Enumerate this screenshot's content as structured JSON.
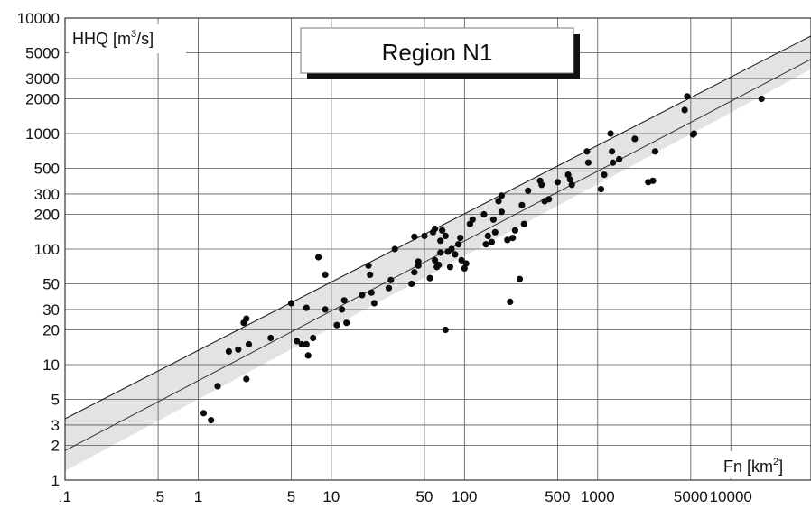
{
  "chart_data": {
    "type": "scatter",
    "title": "Region N1",
    "y_label": {
      "text": "HHQ [m",
      "sup": "3",
      "tail": "/s]"
    },
    "x_label": {
      "text": "Fn [km",
      "sup": "2",
      "tail": "]"
    },
    "x_scale": "log",
    "y_scale": "log",
    "xlim": [
      0.1,
      40000
    ],
    "ylim": [
      1,
      10000
    ],
    "x_ticks": [
      {
        "value": 0.1,
        "label": ".1"
      },
      {
        "value": 0.5,
        "label": ".5"
      },
      {
        "value": 1,
        "label": "1"
      },
      {
        "value": 5,
        "label": "5"
      },
      {
        "value": 10,
        "label": "10"
      },
      {
        "value": 50,
        "label": "50"
      },
      {
        "value": 100,
        "label": "100"
      },
      {
        "value": 500,
        "label": "500"
      },
      {
        "value": 1000,
        "label": "1000"
      },
      {
        "value": 5000,
        "label": "5000"
      },
      {
        "value": 10000,
        "label": "10000"
      }
    ],
    "y_ticks": [
      {
        "value": 1,
        "label": "1"
      },
      {
        "value": 2,
        "label": "2"
      },
      {
        "value": 3,
        "label": "3"
      },
      {
        "value": 5,
        "label": "5"
      },
      {
        "value": 10,
        "label": "10"
      },
      {
        "value": 20,
        "label": "20"
      },
      {
        "value": 30,
        "label": "30"
      },
      {
        "value": 50,
        "label": "50"
      },
      {
        "value": 100,
        "label": "100"
      },
      {
        "value": 200,
        "label": "200"
      },
      {
        "value": 300,
        "label": "300"
      },
      {
        "value": 500,
        "label": "500"
      },
      {
        "value": 1000,
        "label": "1000"
      },
      {
        "value": 2000,
        "label": "2000"
      },
      {
        "value": 3000,
        "label": "3000"
      },
      {
        "value": 5000,
        "label": "5000"
      },
      {
        "value": 10000,
        "label": "10000"
      }
    ],
    "grid": true,
    "upper_line": {
      "x": [
        0.1,
        40000
      ],
      "y": [
        3.4,
        7000
      ]
    },
    "mid_line": {
      "x": [
        0.1,
        40000
      ],
      "y": [
        1.8,
        4400
      ]
    },
    "band": {
      "upper": [
        [
          0.1,
          3.4
        ],
        [
          40000,
          7000
        ]
      ],
      "lower": [
        [
          0.1,
          1.2
        ],
        [
          40000,
          3600
        ]
      ]
    },
    "points": [
      [
        1.1,
        3.8
      ],
      [
        1.25,
        3.3
      ],
      [
        1.4,
        6.5
      ],
      [
        1.7,
        13
      ],
      [
        2.0,
        13.5
      ],
      [
        2.2,
        23
      ],
      [
        2.3,
        25
      ],
      [
        2.3,
        7.5
      ],
      [
        2.4,
        15
      ],
      [
        3.5,
        17
      ],
      [
        5,
        34
      ],
      [
        5.5,
        16
      ],
      [
        6.0,
        15
      ],
      [
        6.5,
        31
      ],
      [
        6.5,
        15
      ],
      [
        6.7,
        12
      ],
      [
        7.3,
        17
      ],
      [
        8,
        85
      ],
      [
        9,
        60
      ],
      [
        9,
        30
      ],
      [
        11,
        22
      ],
      [
        12,
        30
      ],
      [
        12.5,
        36
      ],
      [
        13,
        23
      ],
      [
        17,
        40
      ],
      [
        19,
        72
      ],
      [
        19.5,
        60
      ],
      [
        20,
        42
      ],
      [
        21,
        34
      ],
      [
        27,
        46
      ],
      [
        28,
        54
      ],
      [
        30,
        100
      ],
      [
        40,
        50
      ],
      [
        42,
        63
      ],
      [
        42,
        128
      ],
      [
        45,
        72
      ],
      [
        45,
        78
      ],
      [
        50,
        130
      ],
      [
        55,
        56
      ],
      [
        58,
        140
      ],
      [
        60,
        80
      ],
      [
        60,
        150
      ],
      [
        62,
        70
      ],
      [
        64,
        73
      ],
      [
        66,
        93
      ],
      [
        66,
        118
      ],
      [
        68,
        145
      ],
      [
        72,
        20
      ],
      [
        72,
        130
      ],
      [
        75,
        95
      ],
      [
        78,
        70
      ],
      [
        80,
        100
      ],
      [
        85,
        90
      ],
      [
        90,
        110
      ],
      [
        93,
        125
      ],
      [
        95,
        80
      ],
      [
        100,
        68
      ],
      [
        103,
        75
      ],
      [
        110,
        165
      ],
      [
        115,
        180
      ],
      [
        140,
        200
      ],
      [
        145,
        110
      ],
      [
        150,
        130
      ],
      [
        160,
        115
      ],
      [
        165,
        180
      ],
      [
        170,
        140
      ],
      [
        180,
        260
      ],
      [
        190,
        290
      ],
      [
        190,
        210
      ],
      [
        210,
        120
      ],
      [
        220,
        35
      ],
      [
        230,
        125
      ],
      [
        240,
        145
      ],
      [
        260,
        55
      ],
      [
        270,
        240
      ],
      [
        280,
        165
      ],
      [
        300,
        320
      ],
      [
        370,
        390
      ],
      [
        380,
        360
      ],
      [
        400,
        260
      ],
      [
        430,
        270
      ],
      [
        500,
        380
      ],
      [
        600,
        440
      ],
      [
        620,
        400
      ],
      [
        640,
        360
      ],
      [
        830,
        700
      ],
      [
        850,
        560
      ],
      [
        1060,
        330
      ],
      [
        1120,
        440
      ],
      [
        1250,
        1000
      ],
      [
        1280,
        700
      ],
      [
        1300,
        560
      ],
      [
        1450,
        600
      ],
      [
        1900,
        900
      ],
      [
        2400,
        380
      ],
      [
        2600,
        390
      ],
      [
        2700,
        700
      ],
      [
        4500,
        1600
      ],
      [
        4700,
        2100
      ],
      [
        5200,
        980
      ],
      [
        5300,
        1000
      ],
      [
        17000,
        2000
      ]
    ]
  }
}
